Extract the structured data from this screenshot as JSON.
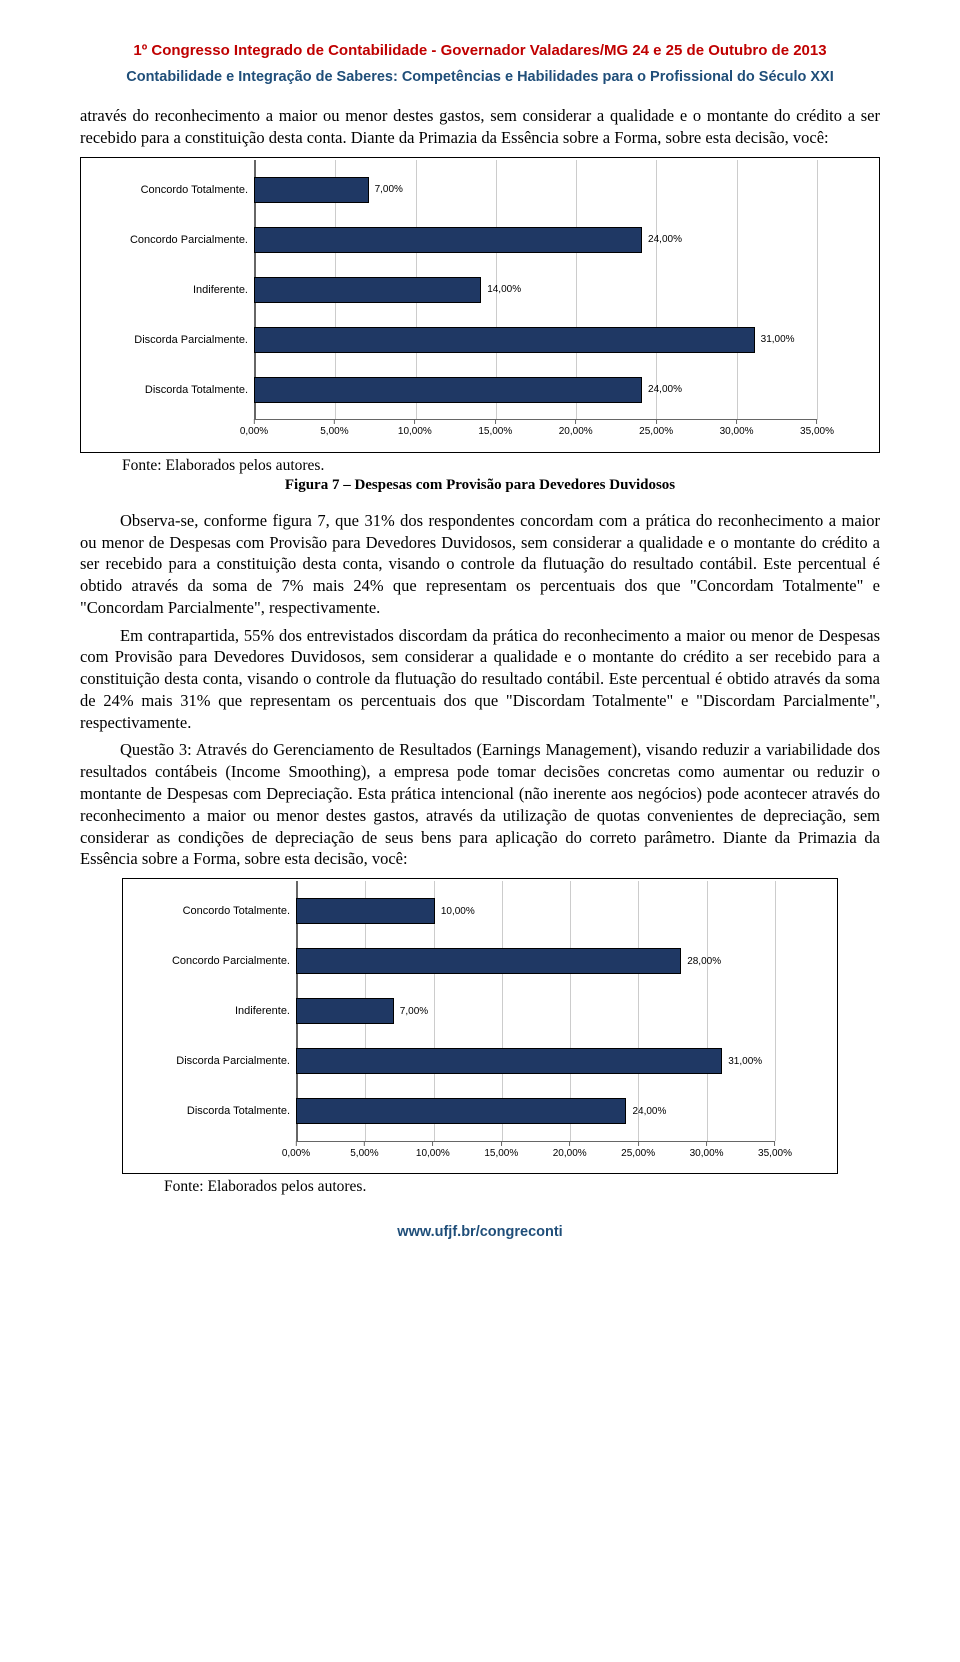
{
  "header": {
    "title": "1º Congresso Integrado de Contabilidade - Governador Valadares/MG 24 e 25 de Outubro de 2013",
    "subtitle": "Contabilidade e Integração de Saberes: Competências e Habilidades para o Profissional do Século XXI"
  },
  "para1": "através do reconhecimento a maior ou menor destes gastos, sem considerar a qualidade e o montante do crédito a ser recebido para a constituição desta conta. Diante da Primazia da Essência sobre a Forma, sobre esta decisão, você:",
  "chart1": {
    "type": "bar-horizontal",
    "bar_color": "#1f3864",
    "border_color": "#000000",
    "xlim": [
      0,
      35
    ],
    "xtick_step": 5,
    "categories": [
      "Concordo Totalmente.",
      "Concordo Parcialmente.",
      "Indiferente.",
      "Discorda Parcialmente.",
      "Discorda Totalmente."
    ],
    "values": [
      7,
      24,
      14,
      31,
      24
    ],
    "value_labels": [
      "7,00%",
      "24,00%",
      "14,00%",
      "31,00%",
      "24,00%"
    ],
    "x_ticks": [
      "0,00%",
      "5,00%",
      "10,00%",
      "15,00%",
      "20,00%",
      "25,00%",
      "30,00%",
      "35,00%"
    ]
  },
  "source1": "Fonte: Elaborados pelos autores.",
  "figcap1": "Figura 7 – Despesas com Provisão para Devedores Duvidosos",
  "para2": "Observa-se, conforme figura 7, que 31% dos respondentes concordam com a prática do reconhecimento a maior ou menor de Despesas com Provisão para Devedores Duvidosos, sem considerar a qualidade e o montante do crédito a ser recebido para a constituição desta conta, visando o controle da flutuação do resultado contábil. Este percentual é obtido através da soma de 7% mais 24% que representam os percentuais dos que \"Concordam Totalmente\" e \"Concordam Parcialmente\", respectivamente.",
  "para3": "Em contrapartida, 55% dos entrevistados discordam da prática do reconhecimento a maior ou menor de Despesas com Provisão para Devedores Duvidosos, sem considerar a qualidade e o montante do crédito a ser recebido para a constituição desta conta, visando o controle da flutuação do resultado contábil. Este percentual é obtido através da soma de 24% mais 31% que representam os percentuais dos que \"Discordam Totalmente\" e \"Discordam Parcialmente\", respectivamente.",
  "para4": "Questão 3: Através do Gerenciamento de Resultados (Earnings Management), visando reduzir a variabilidade dos resultados contábeis (Income Smoothing), a empresa pode tomar decisões concretas como aumentar ou reduzir o montante de Despesas com Depreciação. Esta prática intencional (não inerente aos negócios) pode acontecer através do reconhecimento a maior ou menor destes gastos, através da utilização de quotas convenientes de depreciação, sem considerar as condições de depreciação de seus bens para aplicação do correto parâmetro. Diante da Primazia da Essência sobre a Forma, sobre esta decisão, você:",
  "chart2": {
    "type": "bar-horizontal",
    "bar_color": "#1f3864",
    "border_color": "#000000",
    "xlim": [
      0,
      35
    ],
    "xtick_step": 5,
    "categories": [
      "Concordo Totalmente.",
      "Concordo Parcialmente.",
      "Indiferente.",
      "Discorda Parcialmente.",
      "Discorda Totalmente."
    ],
    "values": [
      10,
      28,
      7,
      31,
      24
    ],
    "value_labels": [
      "10,00%",
      "28,00%",
      "7,00%",
      "31,00%",
      "24,00%"
    ],
    "x_ticks": [
      "0,00%",
      "5,00%",
      "10,00%",
      "15,00%",
      "20,00%",
      "25,00%",
      "30,00%",
      "35,00%"
    ]
  },
  "source2": "Fonte: Elaborados pelos autores.",
  "footer": "www.ufjf.br/congreconti"
}
